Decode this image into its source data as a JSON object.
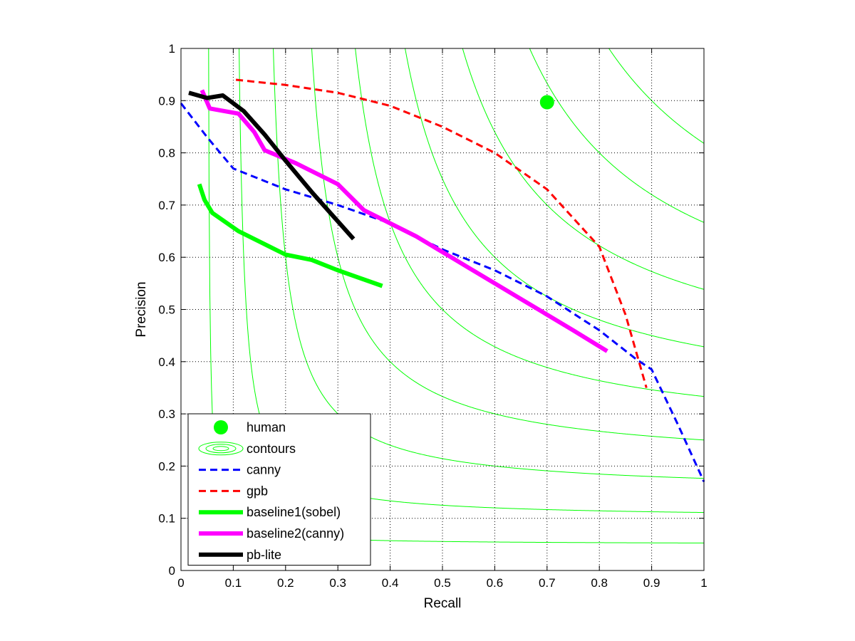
{
  "chart_data": {
    "type": "line",
    "title": "",
    "xlabel": "Recall",
    "ylabel": "Precision",
    "xlim": [
      0,
      1
    ],
    "ylim": [
      0,
      1
    ],
    "xticks": [
      "0",
      "0.1",
      "0.2",
      "0.3",
      "0.4",
      "0.5",
      "0.6",
      "0.7",
      "0.8",
      "0.9",
      "1"
    ],
    "yticks": [
      "0",
      "0.1",
      "0.2",
      "0.3",
      "0.4",
      "0.5",
      "0.6",
      "0.7",
      "0.8",
      "0.9",
      "1"
    ],
    "grid": true,
    "legend_position": "bottom-left",
    "contour_levels": [
      0.1,
      0.2,
      0.3,
      0.4,
      0.5,
      0.6,
      0.7,
      0.8,
      0.9
    ],
    "series": [
      {
        "name": "human",
        "style": "marker",
        "color": "#00ff00",
        "points": [
          [
            0.7,
            0.897
          ]
        ]
      },
      {
        "name": "contours",
        "style": "contour",
        "color": "#00ff00",
        "points": []
      },
      {
        "name": "canny",
        "style": "dashed",
        "color": "#0000ff",
        "points": [
          [
            0.0,
            0.895
          ],
          [
            0.05,
            0.83
          ],
          [
            0.1,
            0.77
          ],
          [
            0.2,
            0.73
          ],
          [
            0.3,
            0.7
          ],
          [
            0.4,
            0.665
          ],
          [
            0.5,
            0.615
          ],
          [
            0.6,
            0.575
          ],
          [
            0.7,
            0.525
          ],
          [
            0.8,
            0.46
          ],
          [
            0.87,
            0.405
          ],
          [
            0.9,
            0.385
          ],
          [
            0.95,
            0.28
          ],
          [
            1.0,
            0.17
          ]
        ]
      },
      {
        "name": "gpb",
        "style": "dashed",
        "color": "#ff0000",
        "points": [
          [
            0.105,
            0.94
          ],
          [
            0.2,
            0.93
          ],
          [
            0.3,
            0.915
          ],
          [
            0.4,
            0.89
          ],
          [
            0.5,
            0.85
          ],
          [
            0.6,
            0.8
          ],
          [
            0.7,
            0.73
          ],
          [
            0.8,
            0.62
          ],
          [
            0.85,
            0.49
          ],
          [
            0.89,
            0.35
          ]
        ]
      },
      {
        "name": "baseline1(sobel)",
        "style": "thick",
        "color": "#00ff00",
        "points": [
          [
            0.035,
            0.74
          ],
          [
            0.045,
            0.71
          ],
          [
            0.06,
            0.685
          ],
          [
            0.11,
            0.65
          ],
          [
            0.15,
            0.63
          ],
          [
            0.2,
            0.605
          ],
          [
            0.25,
            0.595
          ],
          [
            0.3,
            0.575
          ],
          [
            0.385,
            0.545
          ]
        ]
      },
      {
        "name": "baseline2(canny)",
        "style": "thick",
        "color": "#ff00ff",
        "points": [
          [
            0.04,
            0.92
          ],
          [
            0.055,
            0.885
          ],
          [
            0.11,
            0.875
          ],
          [
            0.14,
            0.84
          ],
          [
            0.16,
            0.805
          ],
          [
            0.22,
            0.78
          ],
          [
            0.3,
            0.74
          ],
          [
            0.35,
            0.69
          ],
          [
            0.45,
            0.64
          ],
          [
            0.55,
            0.58
          ],
          [
            0.65,
            0.52
          ],
          [
            0.75,
            0.46
          ],
          [
            0.815,
            0.42
          ]
        ]
      },
      {
        "name": "pb-lite",
        "style": "thick",
        "color": "#000000",
        "points": [
          [
            0.015,
            0.915
          ],
          [
            0.05,
            0.905
          ],
          [
            0.08,
            0.91
          ],
          [
            0.12,
            0.88
          ],
          [
            0.16,
            0.835
          ],
          [
            0.2,
            0.785
          ],
          [
            0.25,
            0.725
          ],
          [
            0.29,
            0.68
          ],
          [
            0.33,
            0.635
          ]
        ]
      }
    ]
  }
}
